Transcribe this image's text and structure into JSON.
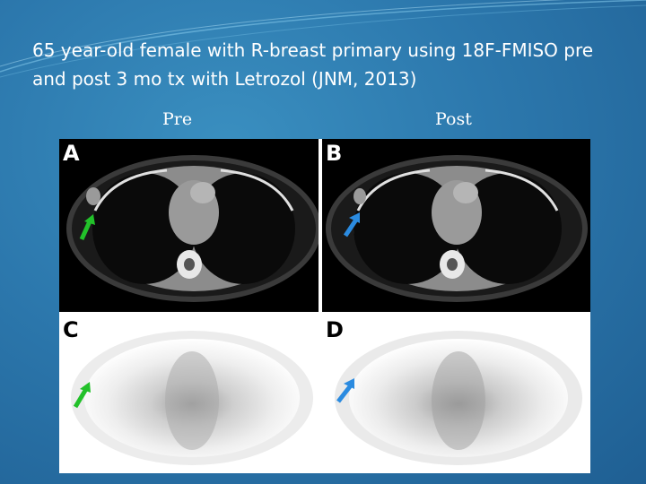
{
  "slide": {
    "title": "65 year-old female with R-breast primary using 18F-FMISO pre and post 3 mo tx with Letrozol (JNM, 2013)"
  },
  "columns": {
    "pre": "Pre",
    "post": "Post"
  },
  "panels": [
    {
      "id": "A",
      "modality": "CT",
      "arrow_color": "#22c12a"
    },
    {
      "id": "B",
      "modality": "CT",
      "arrow_color": "#2b8be0"
    },
    {
      "id": "C",
      "modality": "PET",
      "arrow_color": "#22c12a"
    },
    {
      "id": "D",
      "modality": "PET",
      "arrow_color": "#2b8be0"
    }
  ],
  "colors": {
    "background": "#2c78ad",
    "title_text": "#ffffff"
  }
}
